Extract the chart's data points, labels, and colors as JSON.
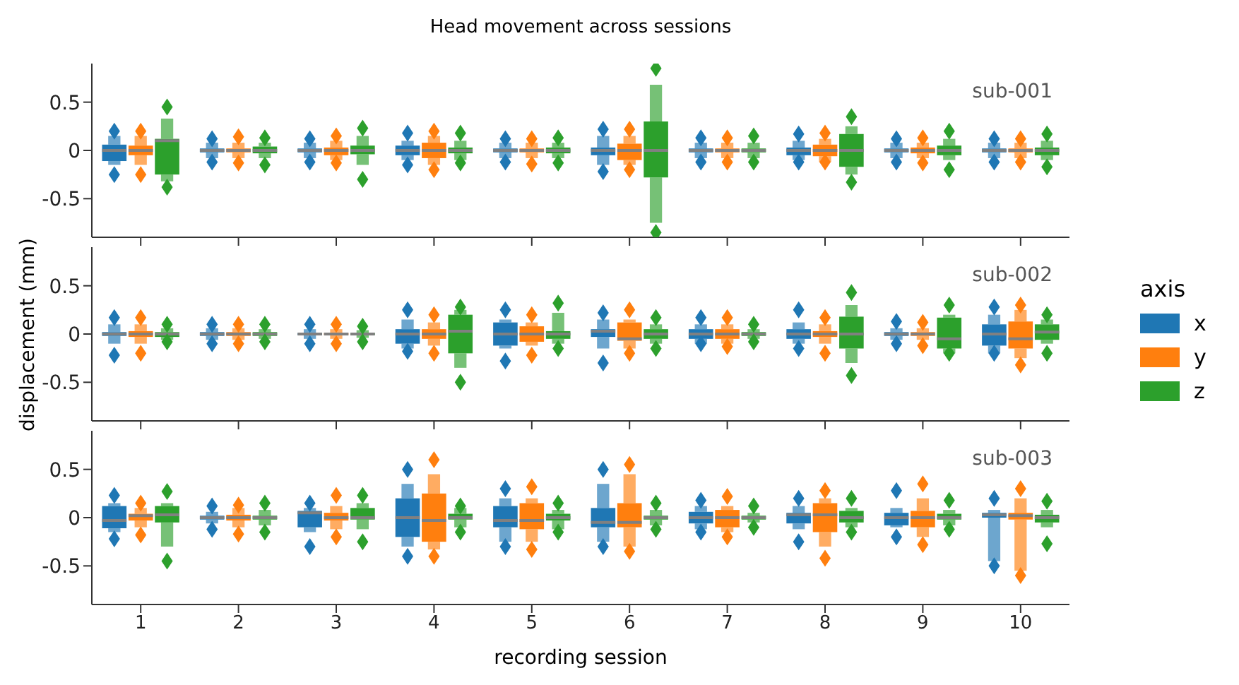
{
  "chart_data": [
    {
      "type": "box",
      "title": "Head movement across sessions",
      "annotations": [
        "sub-001"
      ],
      "categories": [
        "1",
        "2",
        "3",
        "4",
        "5",
        "6",
        "7",
        "8",
        "9",
        "10"
      ],
      "ylim": [
        -0.9,
        0.9
      ],
      "yticks": [
        -0.5,
        0,
        0.5
      ],
      "grid": false,
      "legend": false,
      "tick_labels": "y",
      "series": [
        {
          "color": "#1f77b4",
          "boxes": [
            {
              "low": -0.15,
              "q1": -0.11,
              "median": 0,
              "q3": 0.06,
              "high": 0.15,
              "outliers": [
                0.2,
                -0.25
              ]
            },
            {
              "low": -0.08,
              "q1": -0.02,
              "median": 0,
              "q3": 0.02,
              "high": 0.08,
              "outliers": [
                0.12,
                -0.12
              ]
            },
            {
              "low": -0.08,
              "q1": -0.02,
              "median": 0,
              "q3": 0.02,
              "high": 0.08,
              "outliers": [
                0.12,
                -0.12
              ]
            },
            {
              "low": -0.1,
              "q1": -0.05,
              "median": 0,
              "q3": 0.05,
              "high": 0.1,
              "outliers": [
                0.18,
                -0.15
              ]
            },
            {
              "low": -0.08,
              "q1": -0.02,
              "median": 0,
              "q3": 0.02,
              "high": 0.08,
              "outliers": [
                0.12,
                -0.12
              ]
            },
            {
              "low": -0.15,
              "q1": -0.05,
              "median": 0,
              "q3": 0.03,
              "high": 0.15,
              "outliers": [
                0.22,
                -0.22
              ]
            },
            {
              "low": -0.08,
              "q1": -0.02,
              "median": 0,
              "q3": 0.02,
              "high": 0.08,
              "outliers": [
                0.13,
                -0.12
              ]
            },
            {
              "low": -0.1,
              "q1": -0.05,
              "median": 0,
              "q3": 0.03,
              "high": 0.1,
              "outliers": [
                0.17,
                -0.12
              ]
            },
            {
              "low": -0.08,
              "q1": -0.02,
              "median": 0,
              "q3": 0.02,
              "high": 0.08,
              "outliers": [
                0.12,
                -0.12
              ]
            },
            {
              "low": -0.08,
              "q1": -0.02,
              "median": 0,
              "q3": 0.02,
              "high": 0.08,
              "outliers": [
                0.12,
                -0.12
              ]
            }
          ]
        },
        {
          "color": "#ff7f0e",
          "boxes": [
            {
              "low": -0.15,
              "q1": -0.05,
              "median": 0,
              "q3": 0.05,
              "high": 0.15,
              "outliers": [
                0.2,
                -0.25
              ]
            },
            {
              "low": -0.08,
              "q1": -0.02,
              "median": 0,
              "q3": 0.02,
              "high": 0.08,
              "outliers": [
                0.14,
                -0.13
              ]
            },
            {
              "low": -0.1,
              "q1": -0.05,
              "median": 0,
              "q3": 0.03,
              "high": 0.1,
              "outliers": [
                0.15,
                -0.13
              ]
            },
            {
              "low": -0.15,
              "q1": -0.08,
              "median": 0,
              "q3": 0.08,
              "high": 0.15,
              "outliers": [
                0.2,
                -0.2
              ]
            },
            {
              "low": -0.08,
              "q1": -0.02,
              "median": 0,
              "q3": 0.02,
              "high": 0.08,
              "outliers": [
                0.12,
                -0.14
              ]
            },
            {
              "low": -0.15,
              "q1": -0.1,
              "median": 0,
              "q3": 0.07,
              "high": 0.15,
              "outliers": [
                0.22,
                -0.2
              ]
            },
            {
              "low": -0.08,
              "q1": -0.02,
              "median": 0,
              "q3": 0.02,
              "high": 0.08,
              "outliers": [
                0.13,
                -0.12
              ]
            },
            {
              "low": -0.12,
              "q1": -0.06,
              "median": 0,
              "q3": 0.06,
              "high": 0.12,
              "outliers": [
                0.18,
                -0.12
              ]
            },
            {
              "low": -0.08,
              "q1": -0.03,
              "median": 0,
              "q3": 0.03,
              "high": 0.08,
              "outliers": [
                0.13,
                -0.13
              ]
            },
            {
              "low": -0.08,
              "q1": -0.02,
              "median": 0,
              "q3": 0.02,
              "high": 0.08,
              "outliers": [
                0.12,
                -0.12
              ]
            }
          ]
        },
        {
          "color": "#2ca02c",
          "boxes": [
            {
              "low": -0.32,
              "q1": -0.25,
              "median": 0.1,
              "q3": 0.12,
              "high": 0.33,
              "outliers": [
                0.45,
                -0.38
              ]
            },
            {
              "low": -0.08,
              "q1": -0.03,
              "median": 0,
              "q3": 0.04,
              "high": 0.08,
              "outliers": [
                0.13,
                -0.15
              ]
            },
            {
              "low": -0.15,
              "q1": -0.04,
              "median": 0,
              "q3": 0.05,
              "high": 0.15,
              "outliers": [
                0.23,
                -0.3
              ]
            },
            {
              "low": -0.1,
              "q1": -0.03,
              "median": 0,
              "q3": 0.03,
              "high": 0.1,
              "outliers": [
                0.18,
                -0.13
              ]
            },
            {
              "low": -0.08,
              "q1": -0.03,
              "median": 0,
              "q3": 0.03,
              "high": 0.08,
              "outliers": [
                0.13,
                -0.13
              ]
            },
            {
              "low": -0.75,
              "q1": -0.28,
              "median": 0,
              "q3": 0.3,
              "high": 0.68,
              "outliers": [
                0.85,
                -0.85
              ]
            },
            {
              "low": -0.08,
              "q1": -0.02,
              "median": 0,
              "q3": 0.02,
              "high": 0.08,
              "outliers": [
                0.15,
                -0.12
              ]
            },
            {
              "low": -0.25,
              "q1": -0.17,
              "median": 0,
              "q3": 0.17,
              "high": 0.25,
              "outliers": [
                0.35,
                -0.33
              ]
            },
            {
              "low": -0.1,
              "q1": -0.05,
              "median": 0,
              "q3": 0.05,
              "high": 0.12,
              "outliers": [
                0.2,
                -0.2
              ]
            },
            {
              "low": -0.1,
              "q1": -0.05,
              "median": 0,
              "q3": 0.03,
              "high": 0.1,
              "outliers": [
                0.17,
                -0.17
              ]
            }
          ]
        }
      ]
    },
    {
      "type": "box",
      "ylabel": "displacement (mm)",
      "legend_title": "axis",
      "legend": "right",
      "annotations": [
        "sub-002"
      ],
      "categories": [
        "1",
        "2",
        "3",
        "4",
        "5",
        "6",
        "7",
        "8",
        "9",
        "10"
      ],
      "ylim": [
        -0.9,
        0.9
      ],
      "yticks": [
        -0.5,
        0,
        0.5
      ],
      "grid": false,
      "tick_labels": "y",
      "series": [
        {
          "name": "x",
          "color": "#1f77b4",
          "boxes": [
            {
              "low": -0.1,
              "q1": -0.02,
              "median": 0,
              "q3": 0.02,
              "high": 0.1,
              "outliers": [
                0.17,
                -0.22
              ]
            },
            {
              "low": -0.06,
              "q1": -0.02,
              "median": 0,
              "q3": 0.02,
              "high": 0.06,
              "outliers": [
                0.1,
                -0.1
              ]
            },
            {
              "low": -0.05,
              "q1": -0.01,
              "median": 0,
              "q3": 0.01,
              "high": 0.05,
              "outliers": [
                0.1,
                -0.1
              ]
            },
            {
              "low": -0.15,
              "q1": -0.1,
              "median": 0,
              "q3": 0.05,
              "high": 0.15,
              "outliers": [
                0.25,
                -0.18
              ]
            },
            {
              "low": -0.15,
              "q1": -0.12,
              "median": 0,
              "q3": 0.12,
              "high": 0.15,
              "outliers": [
                0.25,
                -0.28
              ]
            },
            {
              "low": -0.15,
              "q1": -0.03,
              "median": 0.03,
              "q3": 0.05,
              "high": 0.15,
              "outliers": [
                0.22,
                -0.3
              ]
            },
            {
              "low": -0.1,
              "q1": -0.05,
              "median": 0,
              "q3": 0.05,
              "high": 0.1,
              "outliers": [
                0.17,
                -0.1
              ]
            },
            {
              "low": -0.1,
              "q1": -0.05,
              "median": 0,
              "q3": 0.05,
              "high": 0.12,
              "outliers": [
                0.25,
                -0.15
              ]
            },
            {
              "low": -0.06,
              "q1": -0.02,
              "median": 0,
              "q3": 0.02,
              "high": 0.06,
              "outliers": [
                0.13,
                -0.1
              ]
            },
            {
              "low": -0.2,
              "q1": -0.12,
              "median": 0,
              "q3": 0.1,
              "high": 0.2,
              "outliers": [
                0.28,
                -0.2
              ]
            }
          ]
        },
        {
          "name": "y",
          "color": "#ff7f0e",
          "boxes": [
            {
              "low": -0.1,
              "q1": -0.03,
              "median": 0,
              "q3": 0.03,
              "high": 0.1,
              "outliers": [
                0.17,
                -0.2
              ]
            },
            {
              "low": -0.06,
              "q1": -0.02,
              "median": 0,
              "q3": 0.02,
              "high": 0.06,
              "outliers": [
                0.1,
                -0.1
              ]
            },
            {
              "low": -0.05,
              "q1": -0.01,
              "median": 0,
              "q3": 0.01,
              "high": 0.05,
              "outliers": [
                0.1,
                -0.1
              ]
            },
            {
              "low": -0.12,
              "q1": -0.05,
              "median": 0,
              "q3": 0.05,
              "high": 0.12,
              "outliers": [
                0.2,
                -0.2
              ]
            },
            {
              "low": -0.12,
              "q1": -0.08,
              "median": 0,
              "q3": 0.08,
              "high": 0.12,
              "outliers": [
                0.2,
                -0.22
              ]
            },
            {
              "low": -0.15,
              "q1": -0.07,
              "median": -0.05,
              "q3": 0.12,
              "high": 0.15,
              "outliers": [
                0.25,
                -0.2
              ]
            },
            {
              "low": -0.1,
              "q1": -0.05,
              "median": 0,
              "q3": 0.05,
              "high": 0.1,
              "outliers": [
                0.17,
                -0.13
              ]
            },
            {
              "low": -0.1,
              "q1": -0.03,
              "median": 0,
              "q3": 0.03,
              "high": 0.1,
              "outliers": [
                0.17,
                -0.2
              ]
            },
            {
              "low": -0.06,
              "q1": -0.02,
              "median": 0,
              "q3": 0.02,
              "high": 0.06,
              "outliers": [
                0.12,
                -0.12
              ]
            },
            {
              "low": -0.25,
              "q1": -0.15,
              "median": -0.05,
              "q3": 0.13,
              "high": 0.25,
              "outliers": [
                0.3,
                -0.32
              ]
            }
          ]
        },
        {
          "name": "z",
          "color": "#2ca02c",
          "boxes": [
            {
              "low": -0.06,
              "q1": -0.03,
              "median": 0,
              "q3": 0.02,
              "high": 0.06,
              "outliers": [
                0.1,
                -0.08
              ]
            },
            {
              "low": -0.05,
              "q1": -0.02,
              "median": 0,
              "q3": 0.02,
              "high": 0.05,
              "outliers": [
                0.1,
                -0.08
              ]
            },
            {
              "low": -0.04,
              "q1": -0.01,
              "median": 0,
              "q3": 0.01,
              "high": 0.04,
              "outliers": [
                0.08,
                -0.08
              ]
            },
            {
              "low": -0.35,
              "q1": -0.2,
              "median": 0.03,
              "q3": 0.2,
              "high": 0.25,
              "outliers": [
                0.28,
                -0.5
              ]
            },
            {
              "low": -0.1,
              "q1": -0.05,
              "median": 0,
              "q3": 0.03,
              "high": 0.22,
              "outliers": [
                0.32,
                -0.15
              ]
            },
            {
              "low": -0.1,
              "q1": -0.05,
              "median": 0,
              "q3": 0.05,
              "high": 0.1,
              "outliers": [
                0.17,
                -0.15
              ]
            },
            {
              "low": -0.05,
              "q1": -0.02,
              "median": 0,
              "q3": 0.02,
              "high": 0.05,
              "outliers": [
                0.1,
                -0.08
              ]
            },
            {
              "low": -0.3,
              "q1": -0.15,
              "median": 0,
              "q3": 0.18,
              "high": 0.3,
              "outliers": [
                0.43,
                -0.43
              ]
            },
            {
              "low": -0.2,
              "q1": -0.15,
              "median": -0.05,
              "q3": 0.17,
              "high": 0.2,
              "outliers": [
                0.3,
                -0.2
              ]
            },
            {
              "low": -0.1,
              "q1": -0.06,
              "median": 0.02,
              "q3": 0.1,
              "high": 0.15,
              "outliers": [
                0.2,
                -0.2
              ]
            }
          ]
        }
      ]
    },
    {
      "type": "box",
      "xlabel": "recording session",
      "annotations": [
        "sub-003"
      ],
      "categories": [
        "1",
        "2",
        "3",
        "4",
        "5",
        "6",
        "7",
        "8",
        "9",
        "10"
      ],
      "ylim": [
        -0.9,
        0.9
      ],
      "yticks": [
        -0.5,
        0,
        0.5
      ],
      "grid": false,
      "legend": false,
      "series": [
        {
          "color": "#1f77b4",
          "boxes": [
            {
              "low": -0.15,
              "q1": -0.11,
              "median": -0.03,
              "q3": 0.12,
              "high": 0.15,
              "outliers": [
                0.23,
                -0.22
              ]
            },
            {
              "low": -0.06,
              "q1": -0.02,
              "median": 0,
              "q3": 0.02,
              "high": 0.06,
              "outliers": [
                0.12,
                -0.12
              ]
            },
            {
              "low": -0.15,
              "q1": -0.1,
              "median": 0.05,
              "q3": 0.07,
              "high": 0.1,
              "outliers": [
                0.15,
                -0.3
              ]
            },
            {
              "low": -0.3,
              "q1": -0.2,
              "median": 0,
              "q3": 0.2,
              "high": 0.35,
              "outliers": [
                0.5,
                -0.4
              ]
            },
            {
              "low": -0.25,
              "q1": -0.1,
              "median": -0.03,
              "q3": 0.12,
              "high": 0.2,
              "outliers": [
                0.3,
                -0.3
              ]
            },
            {
              "low": -0.25,
              "q1": -0.1,
              "median": -0.05,
              "q3": 0.1,
              "high": 0.35,
              "outliers": [
                0.5,
                -0.3
              ]
            },
            {
              "low": -0.12,
              "q1": -0.06,
              "median": 0,
              "q3": 0.06,
              "high": 0.12,
              "outliers": [
                0.18,
                -0.15
              ]
            },
            {
              "low": -0.12,
              "q1": -0.06,
              "median": 0.03,
              "q3": 0.05,
              "high": 0.12,
              "outliers": [
                0.2,
                -0.25
              ]
            },
            {
              "low": -0.1,
              "q1": -0.08,
              "median": 0,
              "q3": 0.05,
              "high": 0.1,
              "outliers": [
                0.28,
                -0.2
              ]
            },
            {
              "low": -0.45,
              "q1": 0,
              "median": 0.03,
              "q3": 0.05,
              "high": 0.08,
              "outliers": [
                0.2,
                -0.5
              ]
            }
          ]
        },
        {
          "color": "#ff7f0e",
          "boxes": [
            {
              "low": -0.1,
              "q1": -0.03,
              "median": 0.02,
              "q3": 0.04,
              "high": 0.1,
              "outliers": [
                0.15,
                -0.18
              ]
            },
            {
              "low": -0.1,
              "q1": -0.03,
              "median": 0,
              "q3": 0.03,
              "high": 0.1,
              "outliers": [
                0.13,
                -0.17
              ]
            },
            {
              "low": -0.12,
              "q1": -0.03,
              "median": 0,
              "q3": 0.05,
              "high": 0.12,
              "outliers": [
                0.23,
                -0.2
              ]
            },
            {
              "low": -0.33,
              "q1": -0.25,
              "median": -0.03,
              "q3": 0.25,
              "high": 0.45,
              "outliers": [
                0.6,
                -0.4
              ]
            },
            {
              "low": -0.25,
              "q1": -0.12,
              "median": -0.03,
              "q3": 0.15,
              "high": 0.2,
              "outliers": [
                0.32,
                -0.33
              ]
            },
            {
              "low": -0.3,
              "q1": -0.1,
              "median": -0.05,
              "q3": 0.15,
              "high": 0.45,
              "outliers": [
                0.55,
                -0.35
              ]
            },
            {
              "low": -0.15,
              "q1": -0.1,
              "median": 0,
              "q3": 0.08,
              "high": 0.12,
              "outliers": [
                0.22,
                -0.2
              ]
            },
            {
              "low": -0.3,
              "q1": -0.15,
              "median": 0.03,
              "q3": 0.15,
              "high": 0.2,
              "outliers": [
                0.28,
                -0.42
              ]
            },
            {
              "low": -0.2,
              "q1": -0.1,
              "median": 0,
              "q3": 0.07,
              "high": 0.2,
              "outliers": [
                0.35,
                -0.28
              ]
            },
            {
              "low": -0.55,
              "q1": -0.02,
              "median": 0.02,
              "q3": 0.05,
              "high": 0.2,
              "outliers": [
                0.3,
                -0.6
              ]
            }
          ]
        },
        {
          "color": "#2ca02c",
          "boxes": [
            {
              "low": -0.3,
              "q1": -0.05,
              "median": 0.03,
              "q3": 0.12,
              "high": 0.15,
              "outliers": [
                0.27,
                -0.45
              ]
            },
            {
              "low": -0.08,
              "q1": -0.02,
              "median": 0,
              "q3": 0.02,
              "high": 0.08,
              "outliers": [
                0.15,
                -0.15
              ]
            },
            {
              "low": -0.12,
              "q1": -0.02,
              "median": 0,
              "q3": 0.1,
              "high": 0.15,
              "outliers": [
                0.23,
                -0.25
              ]
            },
            {
              "low": -0.1,
              "q1": -0.02,
              "median": 0,
              "q3": 0.04,
              "high": 0.1,
              "outliers": [
                0.12,
                -0.15
              ]
            },
            {
              "low": -0.12,
              "q1": -0.03,
              "median": 0,
              "q3": 0.04,
              "high": 0.08,
              "outliers": [
                0.15,
                -0.15
              ]
            },
            {
              "low": -0.08,
              "q1": -0.02,
              "median": 0,
              "q3": 0.02,
              "high": 0.08,
              "outliers": [
                0.15,
                -0.12
              ]
            },
            {
              "low": -0.05,
              "q1": -0.02,
              "median": 0,
              "q3": 0.02,
              "high": 0.05,
              "outliers": [
                0.12,
                -0.1
              ]
            },
            {
              "low": -0.1,
              "q1": -0.05,
              "median": 0,
              "q3": 0.07,
              "high": 0.1,
              "outliers": [
                0.2,
                -0.15
              ]
            },
            {
              "low": -0.08,
              "q1": -0.02,
              "median": 0,
              "q3": 0.04,
              "high": 0.08,
              "outliers": [
                0.18,
                -0.12
              ]
            },
            {
              "low": -0.1,
              "q1": -0.05,
              "median": 0,
              "q3": 0.03,
              "high": 0.08,
              "outliers": [
                0.17,
                -0.27
              ]
            }
          ]
        }
      ]
    }
  ]
}
